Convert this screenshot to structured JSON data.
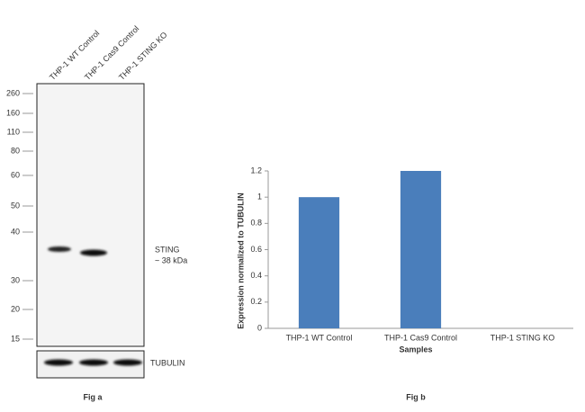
{
  "blot": {
    "lanes": [
      "THP-1 WT Control",
      "THP-1 Cas9 Control",
      "THP-1 STING KO"
    ],
    "markers": [
      260,
      160,
      110,
      80,
      60,
      50,
      40,
      30,
      20,
      15
    ],
    "band_label": "STING",
    "band_size": "~ 38 kDa",
    "loading_control": "TUBULIN",
    "caption": "Fig a"
  },
  "chart_data": {
    "type": "bar",
    "caption": "Fig b",
    "categories": [
      "THP-1 WT Control",
      "THP-1 Cas9 Control",
      "THP-1 STING KO"
    ],
    "values": [
      1,
      1.2,
      0
    ],
    "color": "#4a7ebb",
    "ylim": [
      0,
      1.2
    ],
    "yticks": [
      0,
      0.2,
      0.4,
      0.6,
      0.8,
      1,
      1.2
    ],
    "grid": false,
    "x_label": "Samples",
    "y_label": "Expression  normalized to TUBULIN"
  }
}
